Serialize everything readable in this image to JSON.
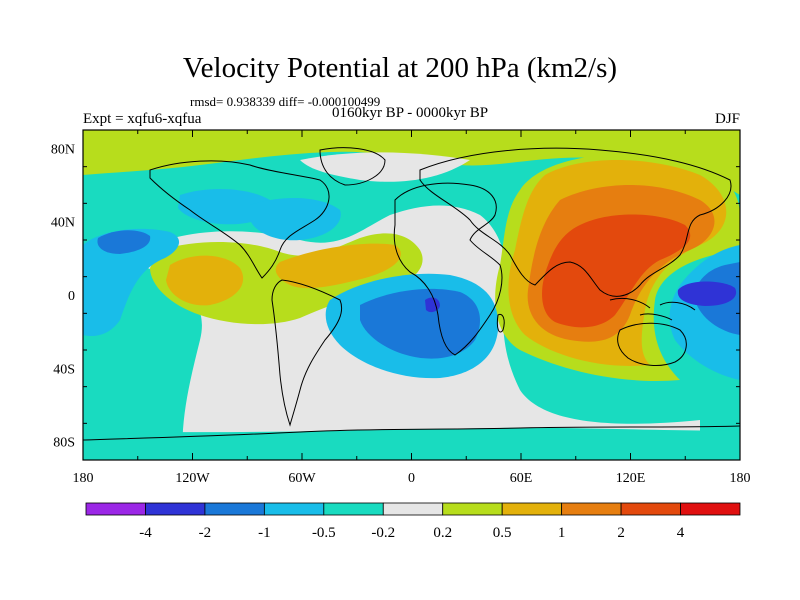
{
  "title": "Velocity Potential at 200 hPa (km2/s)",
  "stats": "rmsd= 0.938339 diff= -0.000100499",
  "experiment": "Expt = xqfu6-xqfua",
  "period": "0160kyr BP - 0000kyr BP",
  "season": "DJF",
  "map": {
    "x_ticks": [
      "180",
      "120W",
      "60W",
      "0",
      "60E",
      "120E",
      "180"
    ],
    "y_ticks": [
      "80N",
      "40N",
      "0",
      "40S",
      "80S"
    ]
  },
  "colorbar": {
    "colors": [
      "#9b27e6",
      "#2f33d6",
      "#1a78d8",
      "#19bde9",
      "#19dbc0",
      "#e6e6e6",
      "#b7dd1c",
      "#e3b10b",
      "#e67e10",
      "#e3490d",
      "#e01010"
    ],
    "labels": [
      "-4",
      "-2",
      "-1",
      "-0.5",
      "-0.2",
      "0.2",
      "0.5",
      "1",
      "2",
      "4"
    ]
  }
}
